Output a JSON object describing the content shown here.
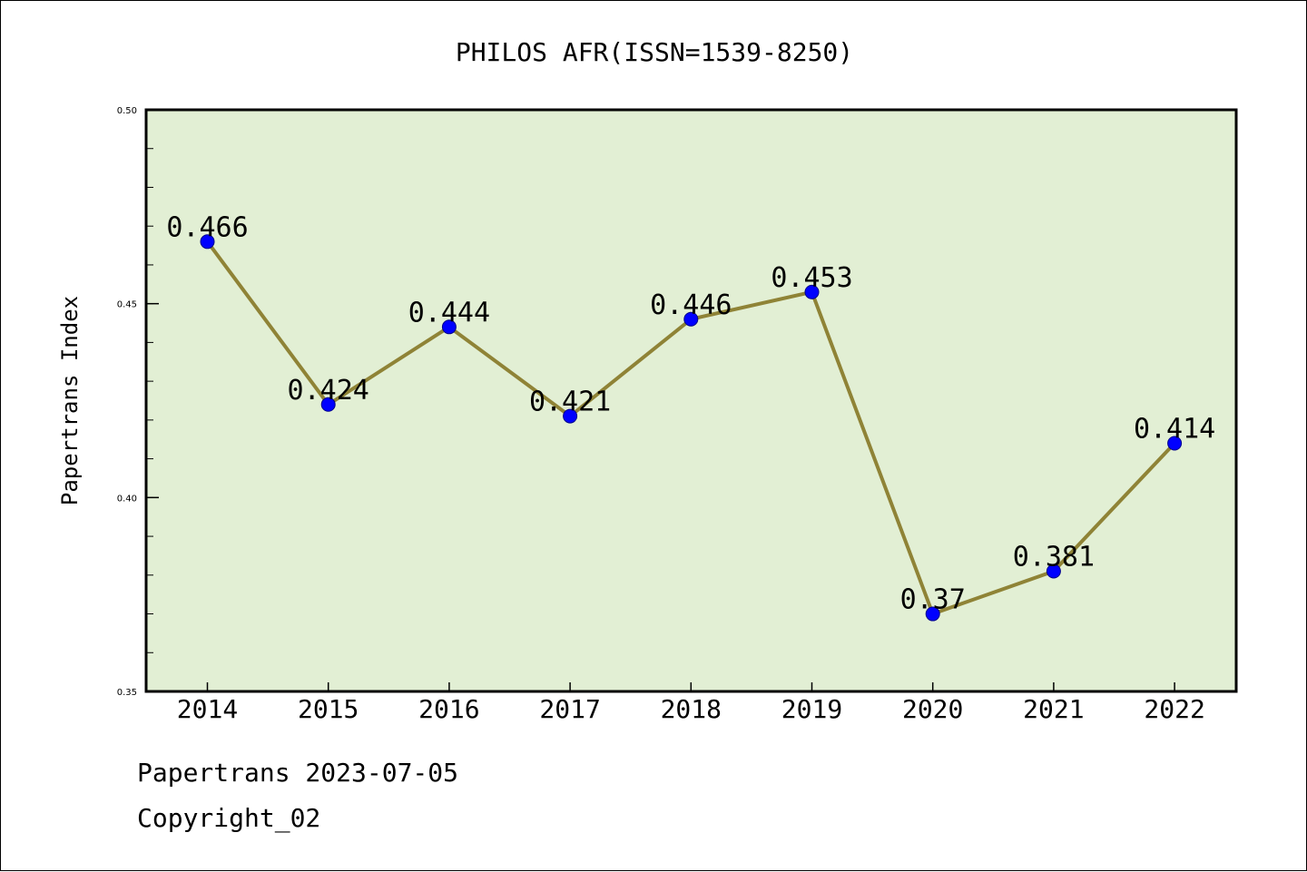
{
  "colors": {
    "plot_background": "#e2efd4",
    "line": "#8f8336",
    "marker_fill": "#0000ff",
    "marker_edge": "#00008b",
    "axis": "#000000",
    "text": "#000000"
  },
  "chart_data": {
    "type": "line",
    "title": "PHILOS AFR(ISSN=1539-8250)",
    "xlabel": "",
    "ylabel": "Papertrans Index",
    "categories": [
      "2014",
      "2015",
      "2016",
      "2017",
      "2018",
      "2019",
      "2020",
      "2021",
      "2022"
    ],
    "values": [
      0.466,
      0.424,
      0.444,
      0.421,
      0.446,
      0.453,
      0.37,
      0.381,
      0.414
    ],
    "data_labels": [
      "0.466",
      "0.424",
      "0.444",
      "0.421",
      "0.446",
      "0.453",
      "0.37",
      "0.381",
      "0.414"
    ],
    "ylim": [
      0.35,
      0.5
    ],
    "y_ticks": [
      0.35,
      0.4,
      0.45,
      0.5
    ],
    "y_tick_labels": [
      "0.35",
      "0.40",
      "0.45",
      "0.50"
    ],
    "y_minor_step": 0.01,
    "grid": false,
    "legend": "none"
  },
  "footer": {
    "line1": "Papertrans 2023-07-05",
    "line2": "Copyright_02"
  }
}
